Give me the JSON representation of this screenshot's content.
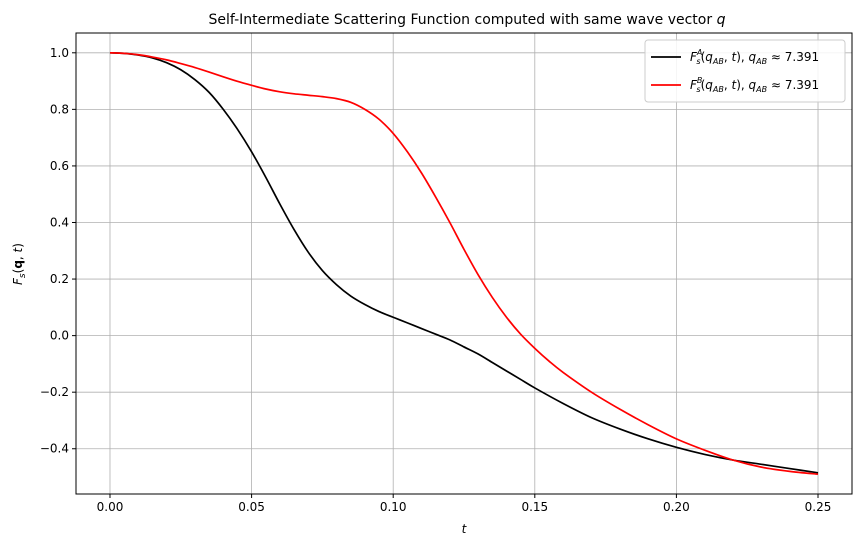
{
  "chart_data": {
    "type": "line",
    "title": "Self-Intermediate Scattering Function computed with same wave vector",
    "title_var": "q",
    "xlabel": "t",
    "ylabel": "F_s(q, t)",
    "xlim": [
      -0.012,
      0.262
    ],
    "ylim": [
      -0.56,
      1.07
    ],
    "xticks": [
      0.0,
      0.05,
      0.1,
      0.15,
      0.2,
      0.25
    ],
    "xtick_labels": [
      "0.00",
      "0.05",
      "0.10",
      "0.15",
      "0.20",
      "0.25"
    ],
    "yticks": [
      -0.4,
      -0.2,
      0.0,
      0.2,
      0.4,
      0.6,
      0.8,
      1.0
    ],
    "ytick_labels": [
      "−0.4",
      "−0.2",
      "0.0",
      "0.2",
      "0.4",
      "0.6",
      "0.8",
      "1.0"
    ],
    "grid": true,
    "legend_position": "top-right",
    "series": [
      {
        "name": "F_s^A(q_AB, t), q_AB ≈ 7.391",
        "legend_sup": "A",
        "legend_value": "7.391",
        "color": "#000000",
        "x": [
          0.0,
          0.005,
          0.01,
          0.015,
          0.02,
          0.025,
          0.03,
          0.035,
          0.04,
          0.045,
          0.05,
          0.055,
          0.06,
          0.065,
          0.07,
          0.075,
          0.08,
          0.085,
          0.09,
          0.095,
          0.1,
          0.105,
          0.11,
          0.115,
          0.12,
          0.125,
          0.13,
          0.135,
          0.14,
          0.145,
          0.15,
          0.16,
          0.17,
          0.18,
          0.19,
          0.2,
          0.21,
          0.22,
          0.23,
          0.24,
          0.25
        ],
        "y": [
          1.0,
          0.998,
          0.992,
          0.982,
          0.965,
          0.94,
          0.905,
          0.86,
          0.8,
          0.73,
          0.65,
          0.56,
          0.465,
          0.375,
          0.295,
          0.23,
          0.18,
          0.14,
          0.11,
          0.085,
          0.065,
          0.045,
          0.025,
          0.005,
          -0.015,
          -0.04,
          -0.065,
          -0.095,
          -0.125,
          -0.155,
          -0.185,
          -0.24,
          -0.29,
          -0.33,
          -0.365,
          -0.395,
          -0.42,
          -0.44,
          -0.455,
          -0.47,
          -0.485
        ]
      },
      {
        "name": "F_s^B(q_AB, t), q_AB ≈ 7.391",
        "legend_sup": "B",
        "legend_value": "7.391",
        "color": "#ff0000",
        "x": [
          0.0,
          0.005,
          0.01,
          0.015,
          0.02,
          0.025,
          0.03,
          0.035,
          0.04,
          0.045,
          0.05,
          0.055,
          0.06,
          0.065,
          0.07,
          0.075,
          0.08,
          0.085,
          0.09,
          0.095,
          0.1,
          0.105,
          0.11,
          0.115,
          0.12,
          0.125,
          0.13,
          0.135,
          0.14,
          0.145,
          0.15,
          0.155,
          0.16,
          0.17,
          0.18,
          0.19,
          0.2,
          0.21,
          0.22,
          0.23,
          0.24,
          0.25
        ],
        "y": [
          1.0,
          0.998,
          0.993,
          0.985,
          0.975,
          0.962,
          0.948,
          0.932,
          0.915,
          0.899,
          0.885,
          0.872,
          0.862,
          0.855,
          0.85,
          0.845,
          0.838,
          0.825,
          0.8,
          0.765,
          0.715,
          0.65,
          0.575,
          0.49,
          0.4,
          0.305,
          0.215,
          0.135,
          0.065,
          0.005,
          -0.045,
          -0.09,
          -0.13,
          -0.2,
          -0.26,
          -0.315,
          -0.365,
          -0.405,
          -0.44,
          -0.465,
          -0.48,
          -0.49
        ]
      }
    ]
  }
}
